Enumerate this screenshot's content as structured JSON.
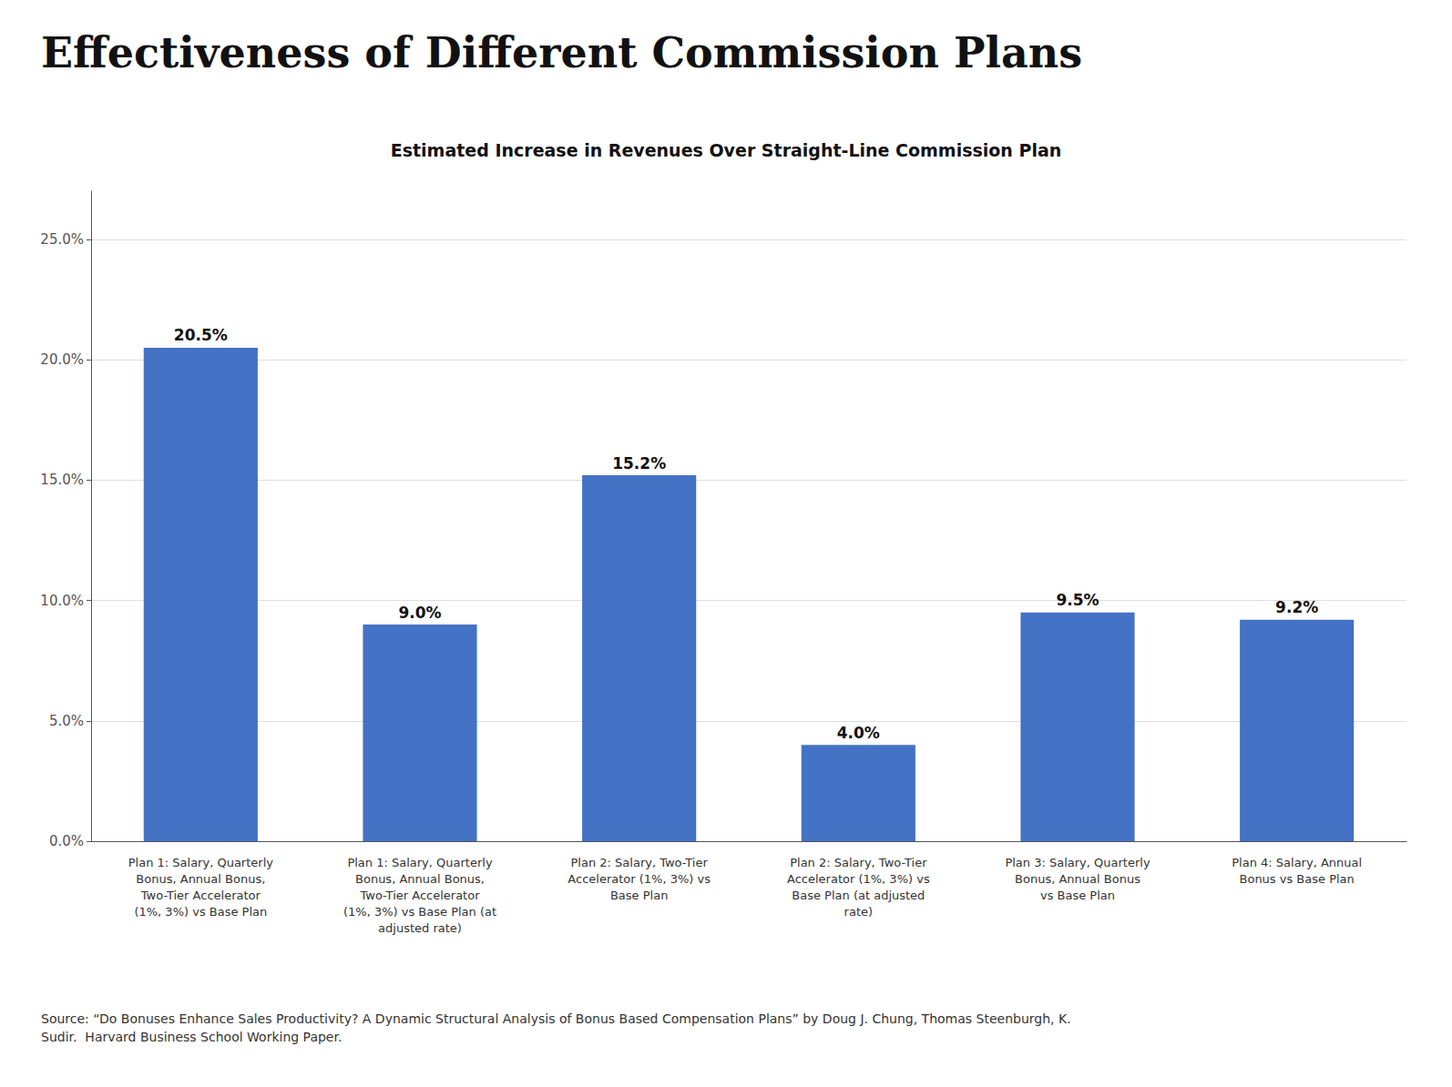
{
  "chart_data": {
    "type": "bar",
    "title": "Effectiveness of Different Commission Plans",
    "subtitle": "Estimated Increase in Revenues Over Straight-Line Commission Plan",
    "categories": [
      "Plan 1: Salary, Quarterly\nBonus, Annual Bonus,\nTwo-Tier Accelerator\n(1%, 3%) vs Base Plan",
      "Plan 1: Salary, Quarterly\nBonus, Annual Bonus,\nTwo-Tier Accelerator\n(1%, 3%) vs Base Plan (at\nadjusted rate)",
      "Plan 2: Salary, Two-Tier\nAccelerator (1%, 3%) vs\nBase Plan",
      "Plan 2: Salary, Two-Tier\nAccelerator (1%, 3%) vs\nBase Plan (at adjusted\nrate)",
      "Plan 3: Salary, Quarterly\nBonus, Annual Bonus\nvs Base Plan",
      "Plan 4: Salary, Annual\nBonus vs Base Plan"
    ],
    "values": [
      20.5,
      9.0,
      15.2,
      4.0,
      9.5,
      9.2
    ],
    "value_labels": [
      "20.5%",
      "9.0%",
      "15.2%",
      "4.0%",
      "9.5%",
      "9.2%"
    ],
    "data_labels": true,
    "color": "#4472C4",
    "ylim": [
      0,
      27
    ],
    "yticks": [
      {
        "value": 0,
        "label": "0.0%"
      },
      {
        "value": 5,
        "label": "5.0%"
      },
      {
        "value": 10,
        "label": "10.0%"
      },
      {
        "value": 15,
        "label": "15.0%"
      },
      {
        "value": 20,
        "label": "20.0%"
      },
      {
        "value": 25,
        "label": "25.0%"
      }
    ],
    "grid": true,
    "annotations": [
      "Source: “Do Bonuses Enhance Sales Productivity? A Dynamic Structural Analysis of Bonus Based Compensation Plans” by Doug J. Chung, Thomas Steenburgh, K.\nSudir.  Harvard Business School Working Paper."
    ]
  }
}
